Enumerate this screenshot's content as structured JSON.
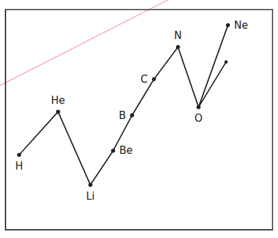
{
  "chart_data": {
    "type": "line",
    "labels": [
      "H",
      "He",
      "Li",
      "Be",
      "B",
      "C",
      "N",
      "O",
      "Ne"
    ],
    "x": [
      5.1,
      19.7,
      31.8,
      40.3,
      47.4,
      55.6,
      64.6,
      72.3,
      83.3
    ],
    "values": [
      34,
      53.6,
      20.4,
      35.9,
      52,
      68.4,
      83,
      55.7,
      92.9
    ],
    "branch": {
      "x": [
        72.3,
        82.6
      ],
      "values": [
        55.7,
        76.2
      ]
    },
    "xlim": [
      0,
      100
    ],
    "ylim": [
      0,
      100
    ],
    "color": "#222222",
    "marker": "circle",
    "grid": false,
    "tick_labels": false
  }
}
